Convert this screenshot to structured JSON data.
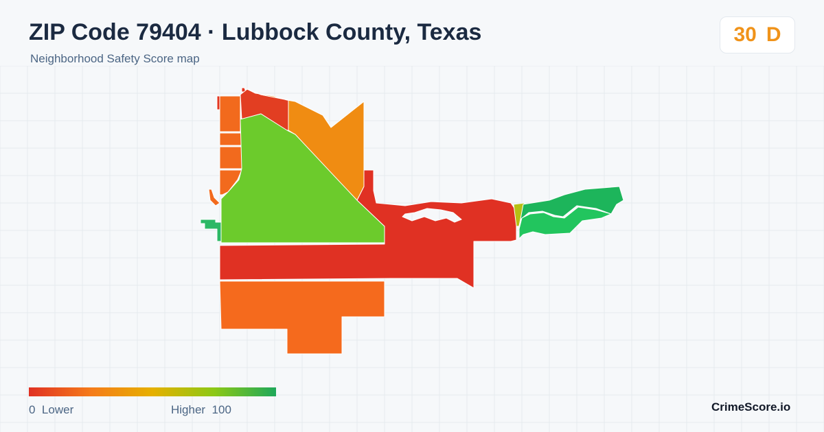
{
  "header": {
    "title": "ZIP Code 79404 · Lubbock County, Texas",
    "subtitle": "Neighborhood Safety Score map"
  },
  "score": {
    "value": "30",
    "grade": "D",
    "color": "#f0931a"
  },
  "legend": {
    "low_value": "0",
    "low_label": "Lower",
    "high_label": "Higher",
    "high_value": "100",
    "gradient": [
      "#e03123",
      "#f57b1a",
      "#e6b000",
      "#8cc816",
      "#1ea85a"
    ]
  },
  "map": {
    "background": "#f6f8fa",
    "grid_color": "#e5eaee",
    "regions": [
      {
        "name": "north-red-strip",
        "color": "#e3341f"
      },
      {
        "name": "north-red-wedge",
        "color": "#e23e22"
      },
      {
        "name": "northwest-orange-blocks",
        "color": "#f26a1d"
      },
      {
        "name": "northeast-orange",
        "color": "#f08c12"
      },
      {
        "name": "central-green",
        "color": "#6ccb2c"
      },
      {
        "name": "central-red-band",
        "color": "#e03123"
      },
      {
        "name": "south-orange",
        "color": "#f56a1d"
      },
      {
        "name": "east-green",
        "color": "#1db55b"
      },
      {
        "name": "east-light-green",
        "color": "#22c55e"
      },
      {
        "name": "east-yellow-sliver",
        "color": "#b6c014"
      },
      {
        "name": "west-green-fragment",
        "color": "#2cb865"
      }
    ]
  },
  "brand": "CrimeScore.io"
}
